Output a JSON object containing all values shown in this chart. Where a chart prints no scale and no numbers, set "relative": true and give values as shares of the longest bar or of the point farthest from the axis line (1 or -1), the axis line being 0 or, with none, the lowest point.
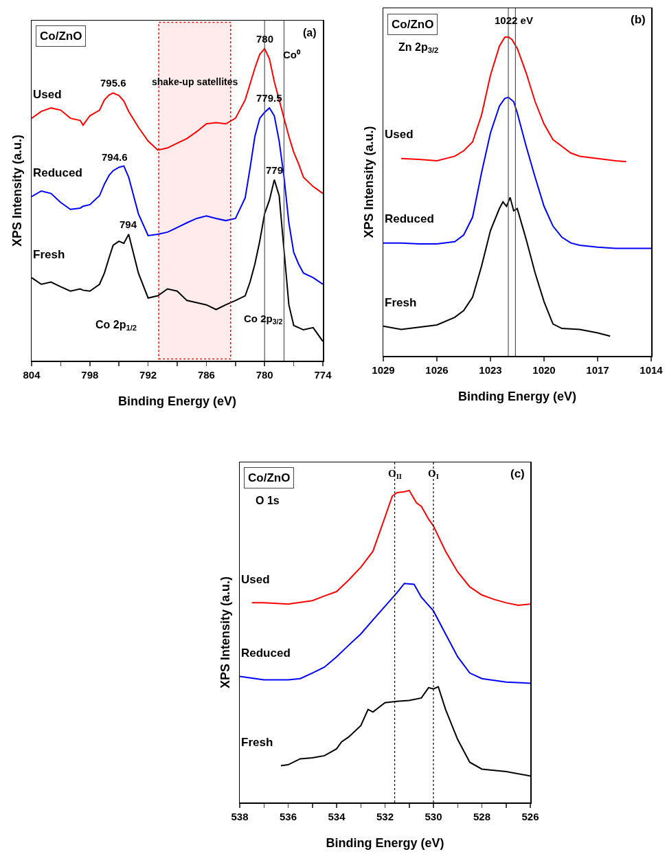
{
  "chart_data": [
    {
      "type": "line",
      "relative": true,
      "marker": "none",
      "line_style": "solid",
      "grid": false,
      "legend": false,
      "xlabel": "Binding Energy (eV)",
      "ylabel": "XPS Intensity (a.u.)",
      "xlim": [
        804,
        774
      ],
      "xticks": [
        804,
        {
          "value": 801,
          "label": null
        },
        798,
        {
          "value": 795,
          "label": null
        },
        792,
        {
          "value": 789,
          "label": null
        },
        786,
        {
          "value": 783,
          "label": null
        },
        780,
        {
          "value": 777,
          "label": null
        },
        774
      ],
      "x": [
        804,
        803,
        802,
        801,
        800,
        799,
        798.7,
        798,
        797,
        796.5,
        796,
        795.6,
        795,
        794.5,
        794,
        793,
        792,
        791,
        790,
        789,
        788,
        787,
        786,
        785,
        784,
        783,
        782,
        781.5,
        781,
        780.5,
        780,
        779.5,
        779,
        778.5,
        778,
        777.5,
        777,
        776.5,
        776,
        775,
        774
      ],
      "series": [
        {
          "name": "Used",
          "color": "#ff0000",
          "values": [
            0.777,
            0.799,
            0.81,
            0.803,
            0.777,
            0.77,
            0.755,
            0.785,
            0.803,
            0.836,
            0.852,
            0.858,
            0.85,
            0.832,
            0.799,
            0.748,
            0.704,
            0.675,
            0.682,
            0.697,
            0.712,
            0.734,
            0.759,
            0.763,
            0.759,
            0.777,
            0.836,
            0.887,
            0.938,
            0.982,
            1.0,
            0.967,
            0.894,
            0.836,
            0.777,
            0.719,
            0.668,
            0.631,
            0.588,
            0.558,
            0.536
          ]
        },
        {
          "name": "Reduced",
          "color": "#0000ff",
          "values": [
            0.526,
            0.544,
            0.536,
            0.507,
            0.485,
            0.489,
            0.495,
            0.5,
            0.529,
            0.566,
            0.595,
            0.609,
            0.62,
            0.624,
            0.588,
            0.471,
            0.401,
            0.405,
            0.412,
            0.427,
            0.442,
            0.456,
            0.464,
            0.456,
            0.449,
            0.456,
            0.522,
            0.617,
            0.719,
            0.777,
            0.796,
            0.81,
            0.785,
            0.704,
            0.588,
            0.442,
            0.347,
            0.31,
            0.281,
            0.266,
            0.245
          ]
        },
        {
          "name": "Fresh",
          "color": "#000000",
          "values": [
            0.266,
            0.245,
            0.252,
            0.237,
            0.223,
            0.23,
            0.226,
            0.223,
            0.245,
            0.281,
            0.332,
            0.37,
            0.383,
            0.376,
            0.405,
            0.281,
            0.201,
            0.208,
            0.23,
            0.223,
            0.193,
            0.186,
            0.179,
            0.164,
            0.179,
            0.193,
            0.208,
            0.252,
            0.31,
            0.383,
            0.471,
            0.515,
            0.58,
            0.529,
            0.354,
            0.179,
            0.113,
            0.106,
            0.099,
            0.106,
            0.062
          ]
        }
      ],
      "ref_lines": [
        {
          "axis": "x",
          "value": 780,
          "color": "#555555",
          "line_style": "solid"
        },
        {
          "axis": "x",
          "value": 778,
          "color": "#555555",
          "line_style": "solid"
        }
      ],
      "bands": [
        {
          "axis": "x",
          "from": 790.9,
          "to": 783.5,
          "color": "#ff0000",
          "label": "shake-up satellites"
        }
      ],
      "annotations": [
        "Co/ZnO",
        "(a)",
        "Co 2p$_{1/2}$",
        {
          "text": "795.6",
          "x": 795.6,
          "y": 0.858
        },
        {
          "text": "794.6",
          "x": 795,
          "y": 0.62
        },
        {
          "text": "794",
          "x": 794,
          "y": 0.405
        },
        {
          "text": "780",
          "x": 780,
          "y": 1.0
        },
        {
          "text": "779.5",
          "x": 779.5,
          "y": 0.81
        },
        {
          "text": "779",
          "x": 779,
          "y": 0.58
        },
        {
          "text": "Co⁰",
          "x": 778,
          "y": 0.95
        },
        {
          "text": "Co 2p$_{3/2}$",
          "x": 777,
          "y": 0.113
        }
      ]
    },
    {
      "type": "line",
      "relative": true,
      "marker": "none",
      "line_style": "solid",
      "grid": false,
      "legend": false,
      "xlabel": "Binding Energy (eV)",
      "ylabel": "XPS Intensity (a.u.)",
      "xlim": [
        1029,
        1014
      ],
      "xticks": [
        1029,
        1026,
        1023,
        1020,
        1017,
        1014
      ],
      "series": [
        {
          "name": "Used",
          "color": "#ff0000",
          "x": [
            1028,
            1027,
            1026,
            1025,
            1024.5,
            1024,
            1023.5,
            1023,
            1022.5,
            1022.2,
            1022,
            1021.8,
            1021.5,
            1021,
            1020.5,
            1020,
            1019.5,
            1019,
            1018.5,
            1018,
            1017,
            1016,
            1015.4
          ],
          "values": [
            0.619,
            0.616,
            0.612,
            0.626,
            0.643,
            0.671,
            0.755,
            0.88,
            0.971,
            0.999,
            1.0,
            0.992,
            0.964,
            0.887,
            0.797,
            0.727,
            0.678,
            0.657,
            0.636,
            0.626,
            0.619,
            0.612,
            0.609
          ]
        },
        {
          "name": "Reduced",
          "color": "#0000ff",
          "x": [
            1029,
            1028,
            1027,
            1026,
            1025,
            1024.5,
            1024,
            1023.5,
            1023,
            1022.5,
            1022.2,
            1022,
            1021.7,
            1021.5,
            1021,
            1020.5,
            1020,
            1019.5,
            1019,
            1018.5,
            1018,
            1017,
            1016,
            1015,
            1014
          ],
          "values": [
            0.354,
            0.354,
            0.351,
            0.351,
            0.358,
            0.379,
            0.435,
            0.574,
            0.699,
            0.783,
            0.807,
            0.811,
            0.797,
            0.762,
            0.657,
            0.56,
            0.469,
            0.407,
            0.372,
            0.354,
            0.347,
            0.341,
            0.337,
            0.337,
            0.337
          ]
        },
        {
          "name": "Fresh",
          "color": "#000000",
          "x": [
            1029,
            1028,
            1027,
            1026,
            1025,
            1024.5,
            1024,
            1023.5,
            1023,
            1022.5,
            1022.3,
            1022.1,
            1021.9,
            1021.7,
            1021.5,
            1021,
            1020.5,
            1020,
            1019.5,
            1019,
            1018,
            1017,
            1016.3
          ],
          "values": [
            0.093,
            0.083,
            0.09,
            0.097,
            0.121,
            0.142,
            0.184,
            0.281,
            0.393,
            0.462,
            0.483,
            0.469,
            0.497,
            0.455,
            0.462,
            0.365,
            0.26,
            0.17,
            0.1,
            0.086,
            0.083,
            0.072,
            0.062
          ]
        }
      ],
      "ref_lines": [
        {
          "axis": "x",
          "value": 1022,
          "color": "#555555",
          "line_style": "solid"
        },
        {
          "axis": "x",
          "value": 1021.6,
          "color": "#555555",
          "line_style": "solid"
        }
      ],
      "annotations": [
        "Co/ZnO",
        "Zn 2p$_{3/2}$",
        "(b)",
        {
          "text": "1022 eV",
          "x": 1022,
          "y": 1.0
        }
      ]
    },
    {
      "type": "line",
      "relative": true,
      "marker": "none",
      "line_style": "solid",
      "grid": false,
      "legend": false,
      "xlabel": "Binding Energy (eV)",
      "ylabel": "XPS Intensity (a.u.)",
      "xlim": [
        538,
        526
      ],
      "xticks": [
        538,
        {
          "value": 537,
          "label": null
        },
        536,
        {
          "value": 535,
          "label": null
        },
        534,
        {
          "value": 533,
          "label": null
        },
        532,
        {
          "value": 531,
          "label": null
        },
        530,
        {
          "value": 529,
          "label": null
        },
        528,
        {
          "value": 527,
          "label": null
        },
        526
      ],
      "series": [
        {
          "name": "Used",
          "color": "#ff0000",
          "x": [
            537.5,
            537,
            536,
            535,
            534.5,
            534,
            533.5,
            533,
            532.5,
            532,
            531.7,
            531.5,
            531.2,
            531,
            530.7,
            530.5,
            530.2,
            530,
            529.5,
            529,
            528.5,
            528,
            527.5,
            527,
            526.5,
            526
          ],
          "values": [
            0.64,
            0.64,
            0.636,
            0.647,
            0.662,
            0.676,
            0.713,
            0.754,
            0.805,
            0.915,
            0.982,
            0.993,
            0.996,
            1.0,
            0.96,
            0.949,
            0.908,
            0.886,
            0.805,
            0.739,
            0.691,
            0.665,
            0.651,
            0.64,
            0.632,
            0.636
          ]
        },
        {
          "name": "Reduced",
          "color": "#0000ff",
          "x": [
            538,
            537,
            536,
            535.5,
            535,
            534.5,
            534,
            533.5,
            533,
            532.5,
            532,
            531.5,
            531.2,
            530.8,
            530.5,
            530,
            529.5,
            529,
            528.5,
            528,
            527,
            526
          ],
          "values": [
            0.404,
            0.393,
            0.393,
            0.397,
            0.415,
            0.434,
            0.467,
            0.504,
            0.54,
            0.585,
            0.629,
            0.673,
            0.702,
            0.699,
            0.658,
            0.614,
            0.54,
            0.467,
            0.415,
            0.397,
            0.386,
            0.382
          ]
        },
        {
          "name": "Fresh",
          "color": "#000000",
          "x": [
            536.3,
            536,
            535.5,
            535,
            534.5,
            534,
            533.8,
            533.5,
            533,
            532.7,
            532.5,
            532,
            531.5,
            531,
            530.5,
            530.2,
            530,
            529.8,
            529.5,
            529,
            528.5,
            528,
            527,
            526
          ],
          "values": [
            0.118,
            0.121,
            0.14,
            0.143,
            0.15,
            0.172,
            0.194,
            0.21,
            0.246,
            0.298,
            0.29,
            0.32,
            0.324,
            0.327,
            0.335,
            0.368,
            0.364,
            0.371,
            0.298,
            0.202,
            0.129,
            0.107,
            0.099,
            0.085
          ]
        }
      ],
      "ref_lines": [
        {
          "axis": "x",
          "value": 531.6,
          "color": "#000000",
          "line_style": "dotted"
        },
        {
          "axis": "x",
          "value": 530,
          "color": "#000000",
          "line_style": "dotted"
        }
      ],
      "annotations": [
        "Co/ZnO",
        "O 1s",
        "(c)",
        {
          "text": "O$_{II}$",
          "x": 531.6,
          "y": 1.02
        },
        {
          "text": "O$_{I}$",
          "x": 530,
          "y": 1.02
        }
      ]
    }
  ]
}
